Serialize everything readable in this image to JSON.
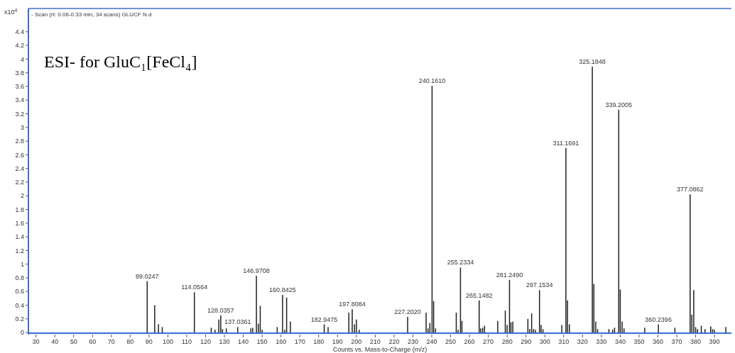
{
  "chart_data": {
    "type": "bar",
    "title": "ESI- for GluC₁[FeCl₄]",
    "subtitle": "- Scan (rt: 0.06-0.33 min, 34 scans) GLUCF N.d",
    "xlabel": "Counts vs. Mass-to-Charge (m/z)",
    "ylabel": "x10$^{4}$",
    "x": [
      89.0247,
      93,
      95,
      97,
      114.0564,
      123,
      125,
      127,
      128.0357,
      129,
      131,
      137.0361,
      144,
      145,
      146.9708,
      148,
      149,
      150,
      158,
      160.8425,
      162,
      163,
      165,
      182.9475,
      185,
      196,
      197.8084,
      199,
      200,
      201.5,
      227.202,
      237,
      238,
      239,
      240.161,
      241,
      242,
      253,
      254,
      255.2334,
      256,
      265.1482,
      266,
      267,
      268,
      275,
      279,
      280,
      281.249,
      282,
      283,
      291,
      292,
      293,
      294,
      295,
      297.1534,
      298,
      299,
      309,
      311.1691,
      312,
      313,
      325.1848,
      326,
      327,
      328,
      334,
      336,
      337,
      339.2005,
      340,
      341,
      342,
      353,
      360.2396,
      369,
      377.0862,
      378,
      379,
      380,
      381,
      383,
      385,
      388,
      389,
      390,
      396
    ],
    "values": [
      0.75,
      0.4,
      0.12,
      0.08,
      0.59,
      0.07,
      0.04,
      0.19,
      0.25,
      0.05,
      0.06,
      0.08,
      0.06,
      0.07,
      0.83,
      0.13,
      0.39,
      0.04,
      0.08,
      0.55,
      0.04,
      0.51,
      0.16,
      0.12,
      0.08,
      0.29,
      0.34,
      0.12,
      0.19,
      0.04,
      0.23,
      0.29,
      0.06,
      0.14,
      3.61,
      0.46,
      0.06,
      0.29,
      0.04,
      0.95,
      0.17,
      0.47,
      0.06,
      0.07,
      0.1,
      0.17,
      0.32,
      0.11,
      0.77,
      0.15,
      0.16,
      0.2,
      0.05,
      0.28,
      0.05,
      0.04,
      0.62,
      0.11,
      0.05,
      0.11,
      2.7,
      0.47,
      0.12,
      3.89,
      0.71,
      0.16,
      0.05,
      0.05,
      0.04,
      0.07,
      3.26,
      0.63,
      0.16,
      0.06,
      0.07,
      0.12,
      0.07,
      2.02,
      0.26,
      0.62,
      0.08,
      0.05,
      0.1,
      0.05,
      0.09,
      0.05,
      0.04,
      0.08
    ],
    "color": "#222222",
    "xlim": [
      26,
      399
    ],
    "ylim": [
      -0.03,
      4.74
    ],
    "xticks": [
      30,
      40,
      50,
      60,
      70,
      80,
      90,
      100,
      110,
      120,
      130,
      140,
      150,
      160,
      170,
      180,
      190,
      200,
      210,
      220,
      230,
      240,
      250,
      260,
      270,
      280,
      290,
      300,
      310,
      320,
      330,
      340,
      350,
      360,
      370,
      380,
      390
    ],
    "yticks": [
      0,
      0.2,
      0.4,
      0.6,
      0.8,
      1,
      1.2,
      1.4,
      1.6,
      1.8,
      2,
      2.2,
      2.4,
      2.6,
      2.8,
      3,
      3.2,
      3.4,
      3.6,
      3.8,
      4,
      4.2,
      4.4
    ],
    "annotations": [
      {
        "text": "89.0247",
        "x": 89.0247,
        "y": 0.75
      },
      {
        "text": "114.0564",
        "x": 114.0564,
        "y": 0.59
      },
      {
        "text": "128.0357",
        "x": 128.0357,
        "y": 0.25
      },
      {
        "text": "137.0361",
        "x": 137.0361,
        "y": 0.08
      },
      {
        "text": "146.9708",
        "x": 146.9708,
        "y": 0.83
      },
      {
        "text": "160.8425",
        "x": 160.8425,
        "y": 0.55
      },
      {
        "text": "182.9475",
        "x": 182.9475,
        "y": 0.12
      },
      {
        "text": "197.8084",
        "x": 197.8084,
        "y": 0.34
      },
      {
        "text": "227.2020",
        "x": 227.202,
        "y": 0.23
      },
      {
        "text": "240.1610",
        "x": 240.161,
        "y": 3.61
      },
      {
        "text": "255.2334",
        "x": 255.2334,
        "y": 0.95
      },
      {
        "text": "265.1482",
        "x": 265.1482,
        "y": 0.47
      },
      {
        "text": "281.2490",
        "x": 281.249,
        "y": 0.77
      },
      {
        "text": "297.1534",
        "x": 297.1534,
        "y": 0.62
      },
      {
        "text": "311.1691",
        "x": 311.1691,
        "y": 2.7
      },
      {
        "text": "325.1848",
        "x": 325.1848,
        "y": 3.89
      },
      {
        "text": "339.2005",
        "x": 339.2005,
        "y": 3.26
      },
      {
        "text": "360.2396",
        "x": 360.2396,
        "y": 0.12
      },
      {
        "text": "377.0862",
        "x": 377.0862,
        "y": 2.02
      }
    ]
  }
}
